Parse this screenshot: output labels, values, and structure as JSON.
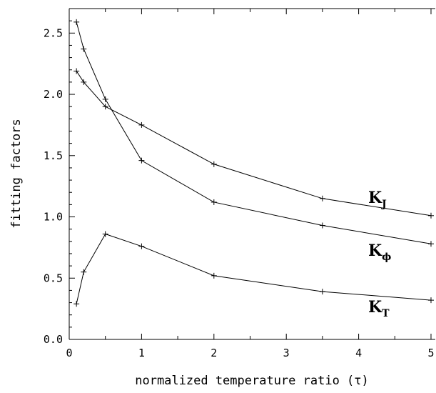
{
  "chart_data": {
    "type": "line",
    "xlabel": "normalized temperature ratio (τ)",
    "ylabel": "fitting factors",
    "xlim": [
      0,
      5
    ],
    "ylim": [
      0,
      2.7
    ],
    "x_ticks": [
      "0",
      "1",
      "2",
      "3",
      "4",
      "5"
    ],
    "y_ticks": [
      "0.0",
      "0.5",
      "1.0",
      "1.5",
      "2.0",
      "2.5"
    ],
    "grid": false,
    "series": [
      {
        "name": "K",
        "subscript": "J",
        "x": [
          0.1,
          0.2,
          0.5,
          1,
          2,
          3.5,
          5
        ],
        "y": [
          2.19,
          2.1,
          1.9,
          1.75,
          1.43,
          1.15,
          1.01
        ]
      },
      {
        "name": "K",
        "subscript": "ϕ",
        "x": [
          0.1,
          0.2,
          0.5,
          1,
          2,
          3.5,
          5
        ],
        "y": [
          2.59,
          2.37,
          1.96,
          1.46,
          1.12,
          0.93,
          0.78
        ]
      },
      {
        "name": "K",
        "subscript": "T",
        "x": [
          0.1,
          0.2,
          0.5,
          1,
          2,
          3.5,
          5
        ],
        "y": [
          0.29,
          0.55,
          0.86,
          0.76,
          0.52,
          0.39,
          0.32
        ]
      }
    ]
  }
}
